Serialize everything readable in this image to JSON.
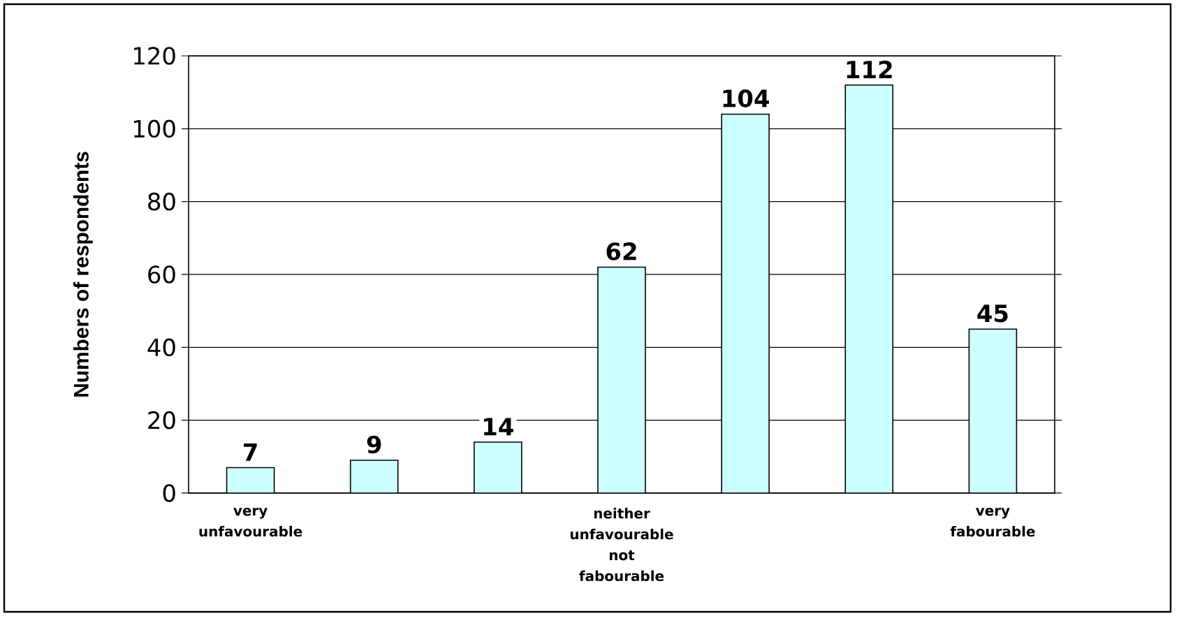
{
  "chart_data": {
    "type": "bar",
    "categories": [
      "very unfavourable",
      null,
      null,
      "neither unfavourable not fabourable",
      null,
      null,
      "very fabourable"
    ],
    "values": [
      7,
      9,
      14,
      62,
      104,
      112,
      45
    ],
    "color": "#ccffff",
    "ylabel": "Numbers of respondents",
    "ylim": [
      0,
      120
    ],
    "yticks": [
      0,
      20,
      40,
      60,
      80,
      100,
      120
    ],
    "grid": "y",
    "data_labels": true
  }
}
